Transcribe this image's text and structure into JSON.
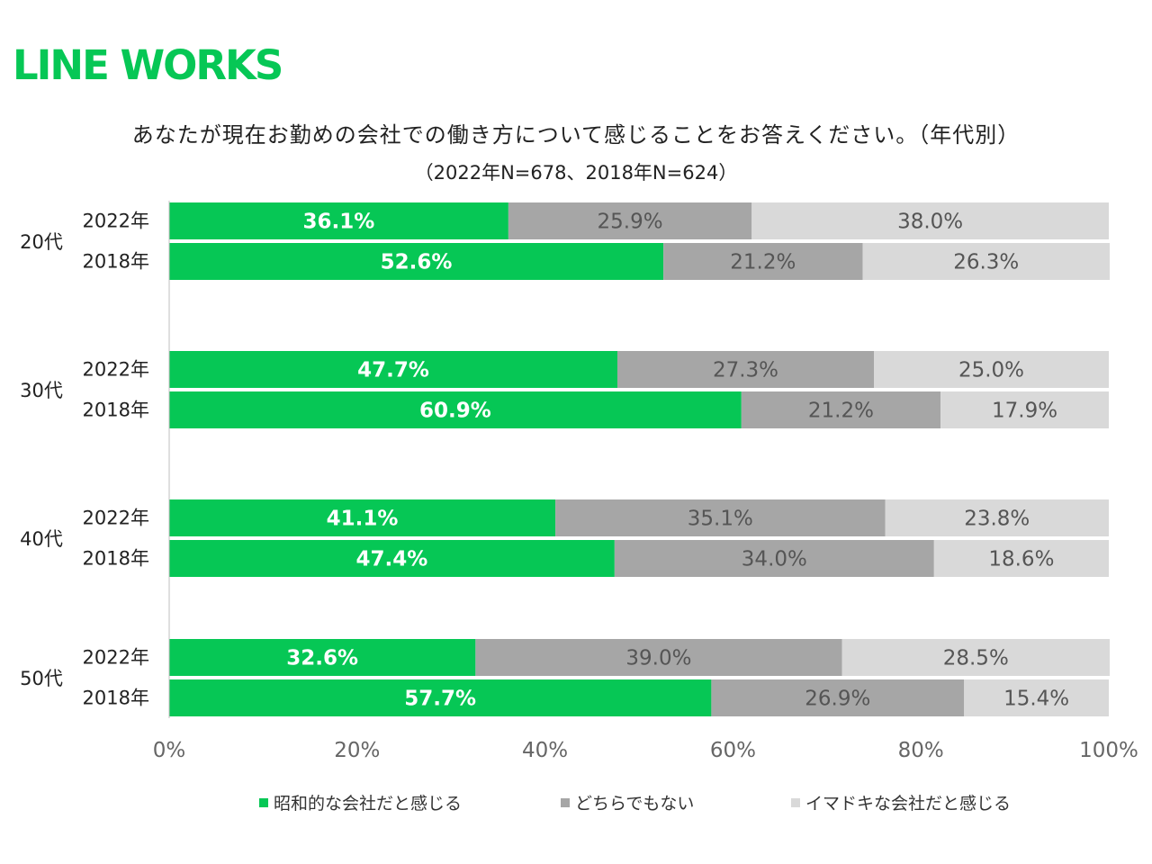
{
  "brand": {
    "logo_text": "LINE WORKS",
    "color": "#06c755"
  },
  "chart_data": {
    "type": "bar",
    "orientation": "horizontal",
    "stacked": true,
    "percent_stacked": true,
    "title": "あなたが現在お勤めの会社での働き方について感じることをお答えください。（年代別）",
    "subtitle": "（2022年N=678、2018年N=624）",
    "groups": [
      "20代",
      "30代",
      "40代",
      "50代"
    ],
    "years": [
      "2022年",
      "2018年"
    ],
    "series": [
      {
        "name": "昭和的な会社だと感じる",
        "color": "#06c755",
        "label_color": "#ffffff",
        "values": [
          [
            36.1,
            52.6
          ],
          [
            47.7,
            60.9
          ],
          [
            41.1,
            47.4
          ],
          [
            32.6,
            57.7
          ]
        ]
      },
      {
        "name": "どちらでもない",
        "color": "#a6a6a6",
        "label_color": "#555555",
        "values": [
          [
            25.9,
            21.2
          ],
          [
            27.3,
            21.2
          ],
          [
            35.1,
            34.0
          ],
          [
            39.0,
            26.9
          ]
        ]
      },
      {
        "name": "イマドキな会社だと感じる",
        "color": "#d9d9d9",
        "label_color": "#555555",
        "values": [
          [
            38.0,
            26.3
          ],
          [
            25.0,
            17.9
          ],
          [
            23.8,
            18.6
          ],
          [
            28.5,
            15.4
          ]
        ]
      }
    ],
    "x_ticks": [
      "0%",
      "20%",
      "40%",
      "60%",
      "80%",
      "100%"
    ],
    "xlim": [
      0,
      100
    ],
    "grid": false,
    "legend_position": "bottom"
  }
}
